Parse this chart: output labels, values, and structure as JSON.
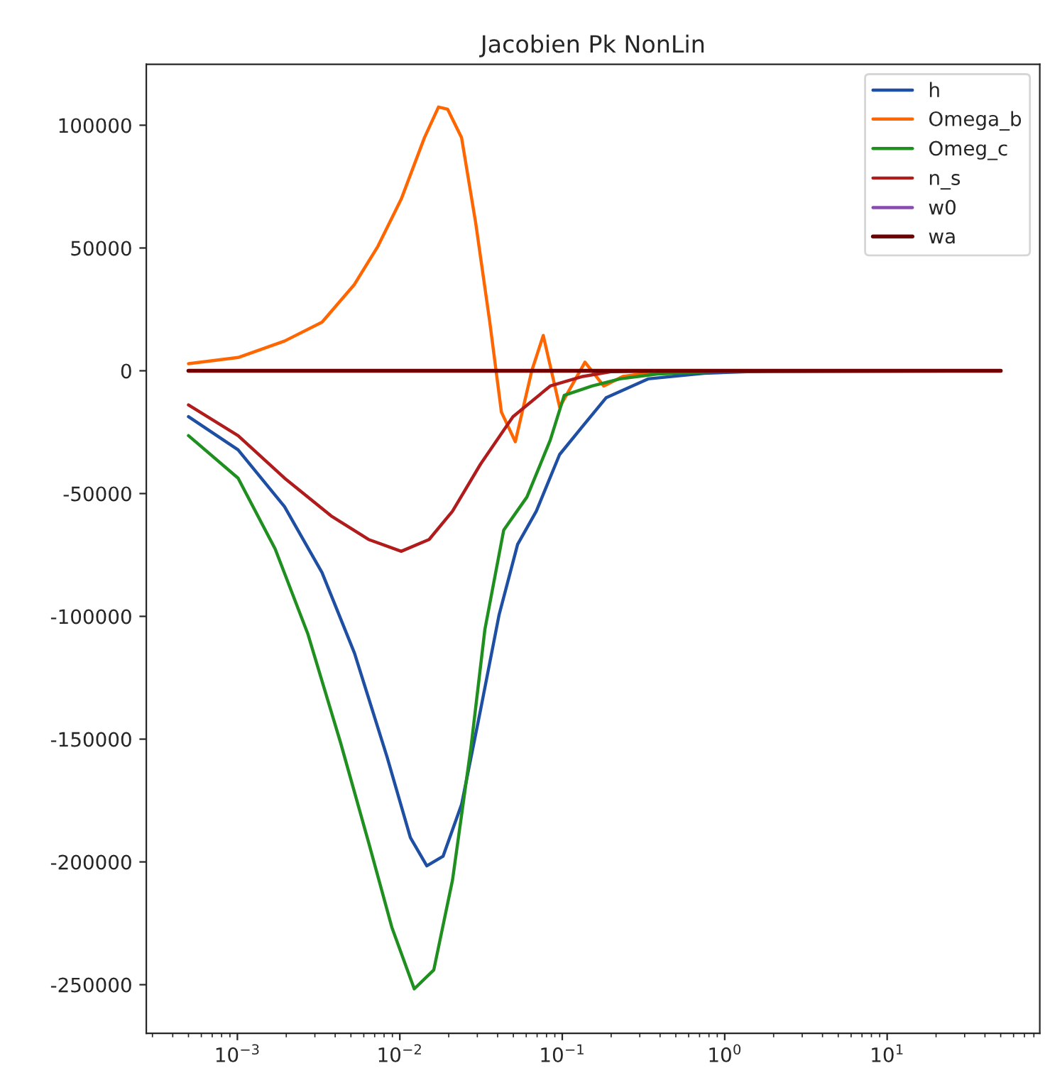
{
  "chart_data": {
    "type": "line",
    "title": "Jacobien Pk NonLin",
    "log": "x",
    "grid": false,
    "legend": "top right",
    "xlim": [
      0.000275,
      87
    ],
    "xticks": [
      {
        "value": 0.001,
        "label": "10$^{−3}$"
      },
      {
        "value": 0.01,
        "label": "10$^{−2}$"
      },
      {
        "value": 0.1,
        "label": "10$^{−1}$"
      },
      {
        "value": 1,
        "label": "10$^{0}$"
      },
      {
        "value": 10,
        "label": "10$^{1}$"
      }
    ],
    "ylim": [
      -269800,
      124800
    ],
    "yticks": [
      -250000,
      -200000,
      -150000,
      -100000,
      -50000,
      0,
      50000,
      100000
    ],
    "series": [
      {
        "name": "h",
        "color": "#1f4fa3",
        "x": [
          0.0005,
          0.00101,
          0.00195,
          0.00332,
          0.00526,
          0.00835,
          0.01162,
          0.01466,
          0.01845,
          0.024,
          0.0314,
          0.0408,
          0.0531,
          0.0692,
          0.0963,
          0.1338,
          0.186,
          0.3375,
          0.746,
          2.01,
          50
        ],
        "values": [
          -18700,
          -32200,
          -55300,
          -82200,
          -115000,
          -157300,
          -190100,
          -201600,
          -197700,
          -176600,
          -138100,
          -99500,
          -70700,
          -57200,
          -34100,
          -22500,
          -11000,
          -3300,
          -1000,
          0,
          0
        ]
      },
      {
        "name": "Omega_b",
        "color": "#ff6600",
        "x": [
          0.0005,
          0.00101,
          0.00195,
          0.00332,
          0.00526,
          0.00733,
          0.0102,
          0.01417,
          0.0173,
          0.0197,
          0.024,
          0.0293,
          0.0358,
          0.0422,
          0.0514,
          0.0649,
          0.0764,
          0.0964,
          0.138,
          0.18,
          0.236,
          0.385,
          0.85,
          50
        ],
        "values": [
          2900,
          5400,
          12100,
          19800,
          35200,
          50700,
          69900,
          94900,
          107400,
          106500,
          94900,
          60300,
          19800,
          -16800,
          -28900,
          0,
          14400,
          -14800,
          3500,
          -6200,
          -2300,
          -400,
          0,
          0
        ]
      },
      {
        "name": "Omeg_c",
        "color": "#1f8f1f",
        "x": [
          0.0005,
          0.00101,
          0.00171,
          0.00272,
          0.00432,
          0.00642,
          0.00893,
          0.01227,
          0.01618,
          0.0211,
          0.0274,
          0.0334,
          0.0436,
          0.0606,
          0.0843,
          0.1028,
          0.1528,
          0.227,
          0.385,
          0.85,
          50
        ],
        "values": [
          -26400,
          -43700,
          -72600,
          -107300,
          -151500,
          -192000,
          -226600,
          -251700,
          -244000,
          -207400,
          -153500,
          -105300,
          -64900,
          -51400,
          -28300,
          -10000,
          -6200,
          -3300,
          -1300,
          -400,
          0
        ]
      },
      {
        "name": "n_s",
        "color": "#b01c1c",
        "x": [
          0.0005,
          0.00101,
          0.00195,
          0.00378,
          0.00642,
          0.0102,
          0.01514,
          0.0211,
          0.0314,
          0.0497,
          0.0843,
          0.1338,
          0.199,
          0.532,
          50
        ],
        "values": [
          -13900,
          -26400,
          -43700,
          -59100,
          -68700,
          -73500,
          -68700,
          -57200,
          -38000,
          -18700,
          -6200,
          -2300,
          -400,
          0,
          0
        ]
      },
      {
        "name": "w0",
        "color": "#8a4bb0"
      },
      {
        "name": "wa",
        "color": "#700000",
        "x": [
          0.0005,
          50
        ],
        "values": [
          0,
          0
        ]
      }
    ]
  }
}
